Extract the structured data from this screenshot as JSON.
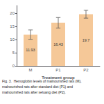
{
  "chart_data": {
    "type": "bar",
    "xlabel": "Treatment group",
    "categories": [
      "M",
      "P1",
      "P2"
    ],
    "values": [
      11.93,
      16.43,
      19.7
    ],
    "errors": [
      1.8,
      2.0,
      1.5
    ],
    "color": "#F5C898",
    "ylim": [
      0,
      23
    ],
    "yticks": [
      0,
      5,
      10,
      15,
      20
    ],
    "grid": false,
    "data_labels": true,
    "annotations": [
      "Fig. 3.  Hemoglobin levels of malnourished rats (M),",
      "malnourished rats after standard diet (P1) and",
      "malnourished rats after seluang diet (P2)."
    ]
  }
}
